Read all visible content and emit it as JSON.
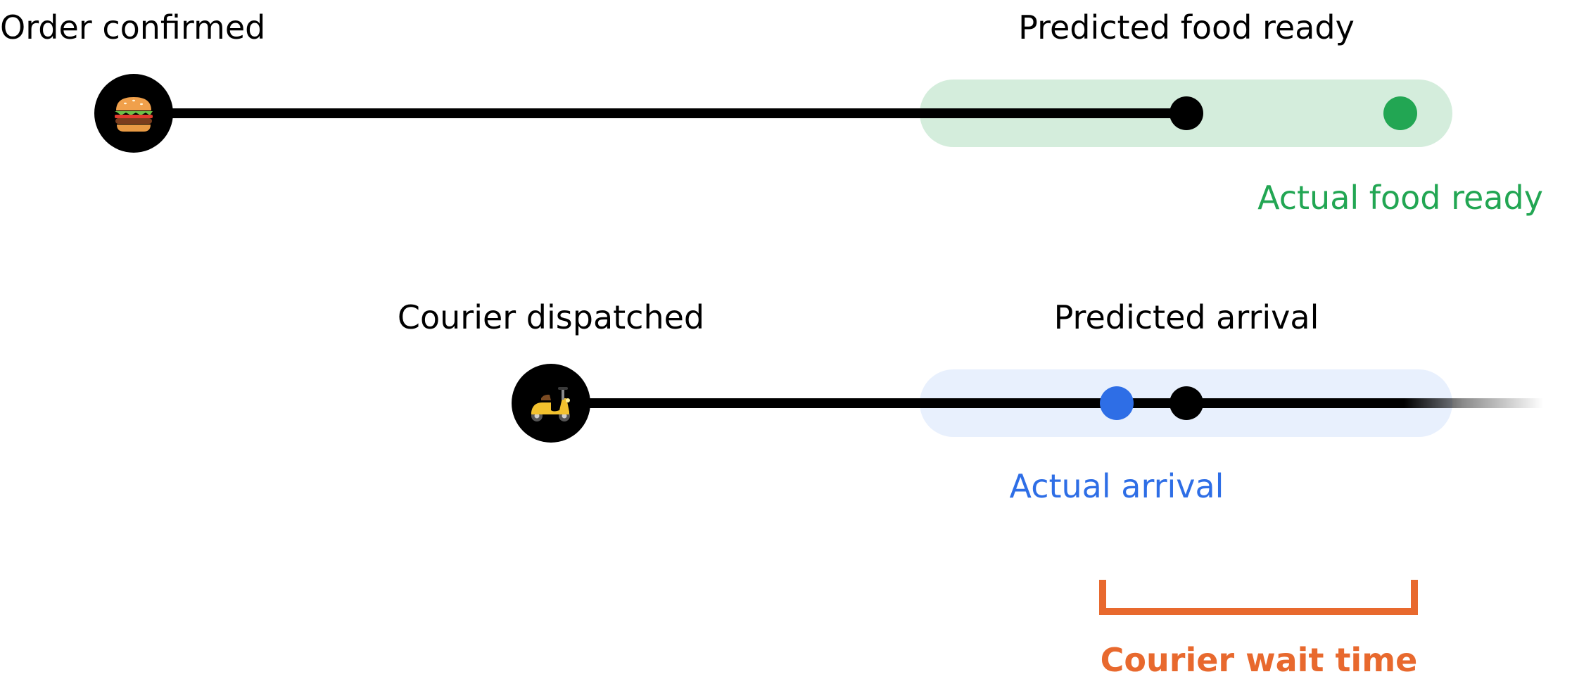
{
  "food_timeline": {
    "start_label": "Order confirmed",
    "start_icon": "burger-icon",
    "predicted_label": "Predicted food ready",
    "actual_label": "Actual food ready",
    "band_color": "#d4eddc",
    "actual_color": "#22a653"
  },
  "courier_timeline": {
    "start_label": "Courier dispatched",
    "start_icon": "scooter-icon",
    "predicted_label": "Predicted arrival",
    "actual_label": "Actual arrival",
    "band_color": "#e8f0fd",
    "actual_color": "#2e6ee6"
  },
  "wait": {
    "label": "Courier wait time",
    "color": "#e8692e"
  }
}
